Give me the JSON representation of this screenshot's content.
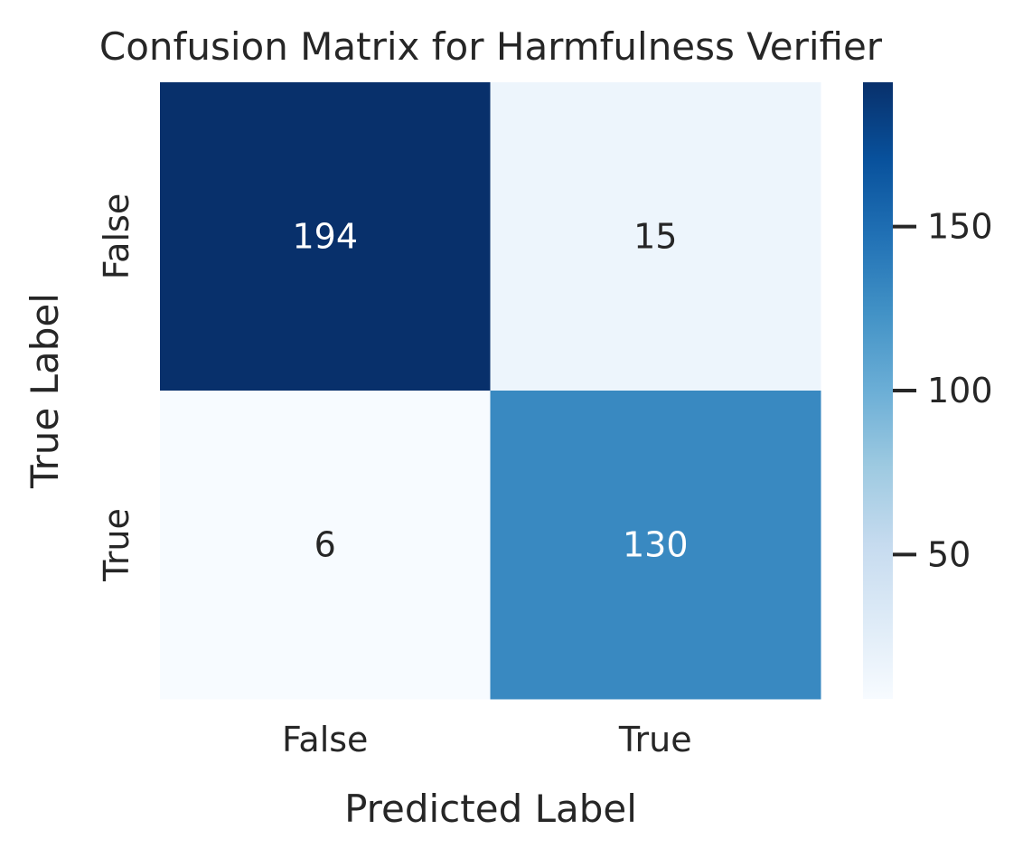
{
  "chart_data": {
    "type": "heatmap",
    "title": "Confusion Matrix for Harmfulness Verifier",
    "xlabel": "Predicted Label",
    "ylabel": "True Label",
    "x_categories": [
      "False",
      "True"
    ],
    "y_categories": [
      "False",
      "True"
    ],
    "values": [
      [
        194,
        15
      ],
      [
        6,
        130
      ]
    ],
    "colormap": "Blues",
    "color_range": [
      6,
      194
    ],
    "colorbar_ticks": [
      50,
      100,
      150
    ],
    "annotate": true,
    "grid": false
  }
}
